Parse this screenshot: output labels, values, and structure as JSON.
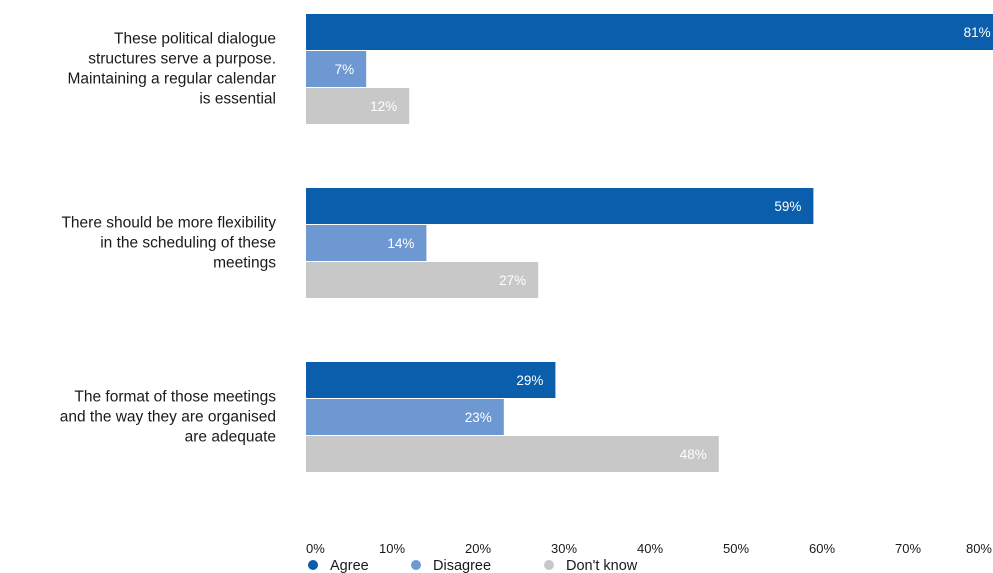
{
  "chart_data": {
    "type": "bar",
    "orientation": "horizontal",
    "categories": [
      [
        "These political dialogue",
        "structures serve a purpose.",
        "Maintaining a regular calendar",
        "is essential"
      ],
      [
        "There should be more flexibility",
        "in the scheduling of these",
        "meetings"
      ],
      [
        "The format of those meetings",
        "and the way they are organised",
        "are adequate"
      ]
    ],
    "series": [
      {
        "name": "Agree",
        "color": "#0a5eab",
        "values": [
          81,
          59,
          29
        ],
        "labels": [
          "81%",
          "59%",
          "29%"
        ]
      },
      {
        "name": "Disagree",
        "color": "#6e98d2",
        "values": [
          7,
          14,
          23
        ],
        "labels": [
          "7%",
          "14%",
          "23%"
        ]
      },
      {
        "name": "Don't know",
        "color": "#c8c8c8",
        "values": [
          12,
          27,
          48
        ],
        "labels": [
          "12%",
          "27%",
          "48%"
        ]
      }
    ],
    "xlim": [
      0,
      80
    ],
    "xticks": [
      0,
      10,
      20,
      30,
      40,
      50,
      60,
      70,
      80
    ],
    "xtick_labels": [
      "0%",
      "10%",
      "20%",
      "30%",
      "40%",
      "50%",
      "60%",
      "70%",
      "80%"
    ],
    "grid": false,
    "legend_position": "bottom-left"
  }
}
